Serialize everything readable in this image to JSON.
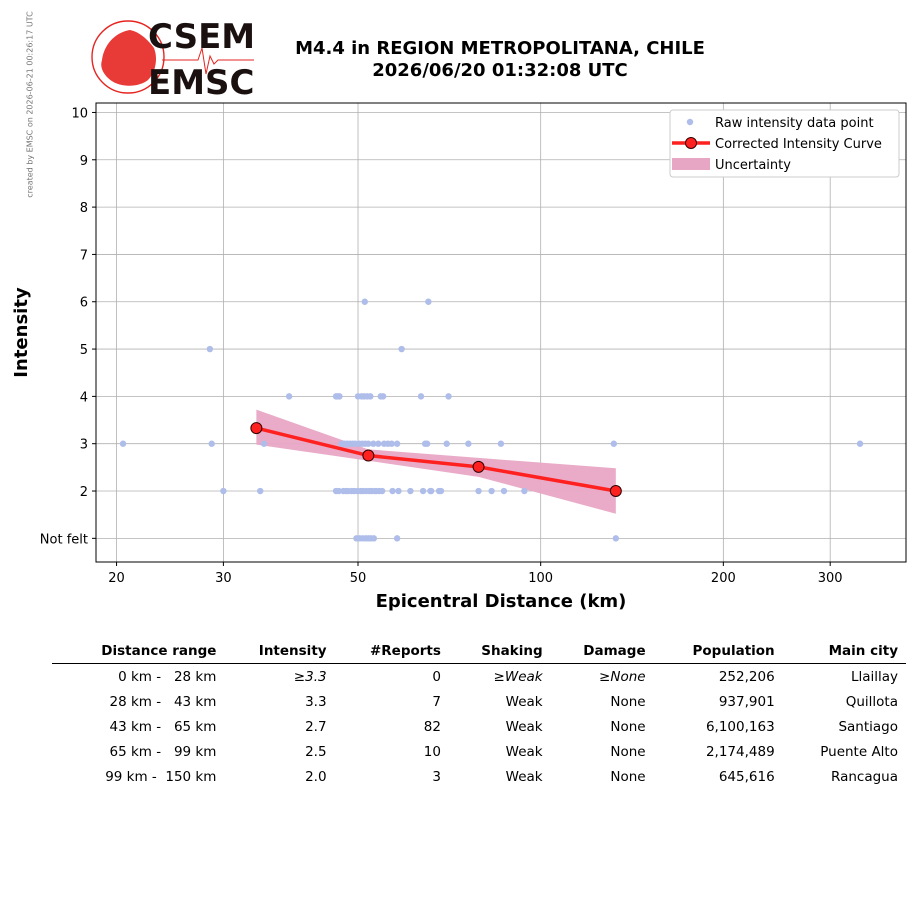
{
  "side_credit": "created by EMSC on 2026-06-21 00:26:17 UTC",
  "logo": {
    "top": "CSEM",
    "bottom": "EMSC",
    "color": "#e52521"
  },
  "header": {
    "title_line1": "M4.4 in REGION METROPOLITANA, CHILE",
    "title_line2": "2026/06/20 01:32:08 UTC"
  },
  "chart_data": {
    "type": "scatter",
    "xlabel": "Epicentral Distance (km)",
    "ylabel": "Intensity",
    "x_scale": "log",
    "xlim": [
      18.5,
      400
    ],
    "ylim": [
      0.5,
      10.2
    ],
    "x_ticks": [
      20,
      30,
      50,
      100,
      200,
      300
    ],
    "y_ticks": [
      1,
      2,
      3,
      4,
      5,
      6,
      7,
      8,
      9,
      10
    ],
    "y_tick_labels": [
      "Not felt",
      "2",
      "3",
      "4",
      "5",
      "6",
      "7",
      "8",
      "9",
      "10"
    ],
    "grid": true,
    "legend": {
      "placement": "top-right",
      "entries": [
        "Raw intensity data point",
        "Corrected Intensity Curve",
        "Uncertainty"
      ]
    },
    "colors": {
      "raw": "#aebde9",
      "curve": "#ff2020",
      "uncertainty": "#e8a6c5"
    },
    "raw_points": [
      [
        20.5,
        3
      ],
      [
        28.5,
        5
      ],
      [
        28.7,
        3
      ],
      [
        30,
        2
      ],
      [
        34.5,
        2
      ],
      [
        35,
        3
      ],
      [
        38.5,
        4
      ],
      [
        46,
        4
      ],
      [
        46.3,
        4
      ],
      [
        46.6,
        4
      ],
      [
        46,
        2
      ],
      [
        46.5,
        2
      ],
      [
        47,
        3
      ],
      [
        47.3,
        2
      ],
      [
        47.5,
        3
      ],
      [
        47.8,
        2
      ],
      [
        48,
        3
      ],
      [
        48.2,
        2
      ],
      [
        48.5,
        3
      ],
      [
        48.8,
        2
      ],
      [
        49,
        3
      ],
      [
        49.3,
        2
      ],
      [
        49.5,
        3
      ],
      [
        49.7,
        1
      ],
      [
        49.9,
        2
      ],
      [
        50,
        4
      ],
      [
        50.2,
        3
      ],
      [
        50.3,
        1
      ],
      [
        50.5,
        2
      ],
      [
        50.7,
        4
      ],
      [
        50.8,
        3
      ],
      [
        50.9,
        1
      ],
      [
        51,
        2
      ],
      [
        51.2,
        4
      ],
      [
        51.3,
        6
      ],
      [
        51.4,
        3
      ],
      [
        51.5,
        1
      ],
      [
        51.6,
        2
      ],
      [
        51.8,
        4
      ],
      [
        52,
        3
      ],
      [
        52,
        1
      ],
      [
        52.2,
        2
      ],
      [
        52.4,
        4
      ],
      [
        52.5,
        1
      ],
      [
        52.7,
        2
      ],
      [
        53,
        3
      ],
      [
        53.1,
        1
      ],
      [
        53.3,
        2
      ],
      [
        53.6,
        2
      ],
      [
        54,
        3
      ],
      [
        54.2,
        2
      ],
      [
        54.5,
        4
      ],
      [
        54.8,
        2
      ],
      [
        55,
        4
      ],
      [
        55.2,
        3
      ],
      [
        56,
        3
      ],
      [
        56.8,
        3
      ],
      [
        57,
        2
      ],
      [
        58,
        3
      ],
      [
        58,
        1
      ],
      [
        58.3,
        2
      ],
      [
        59,
        5
      ],
      [
        61,
        2
      ],
      [
        63.5,
        4
      ],
      [
        64,
        2
      ],
      [
        64.5,
        3
      ],
      [
        65,
        3
      ],
      [
        65.3,
        6
      ],
      [
        65.8,
        2
      ],
      [
        66,
        2
      ],
      [
        68,
        2
      ],
      [
        68.5,
        2
      ],
      [
        70,
        3
      ],
      [
        70.5,
        4
      ],
      [
        76,
        3
      ],
      [
        79,
        2
      ],
      [
        83,
        2
      ],
      [
        86,
        3
      ],
      [
        87,
        2
      ],
      [
        94,
        2
      ],
      [
        132,
        3
      ],
      [
        133,
        1
      ],
      [
        133,
        2
      ],
      [
        134,
        2
      ],
      [
        336,
        3
      ]
    ],
    "curve": {
      "x": [
        34,
        52,
        79,
        133
      ],
      "y": [
        3.33,
        2.75,
        2.51,
        2.0
      ]
    },
    "uncertainty": {
      "x": [
        34,
        52,
        79,
        133
      ],
      "upper": [
        3.72,
        2.88,
        2.7,
        2.48
      ],
      "lower": [
        2.98,
        2.64,
        2.3,
        1.52
      ]
    }
  },
  "table": {
    "headers": [
      "Distance range",
      "Intensity",
      "#Reports",
      "Shaking",
      "Damage",
      "Population",
      "Main city"
    ],
    "rows": [
      [
        "0 km -   28 km",
        "≥3.3",
        "0",
        "≥Weak",
        "≥None",
        "252,206",
        "Llaillay"
      ],
      [
        "28 km -   43 km",
        "3.3",
        "7",
        "Weak",
        "None",
        "937,901",
        "Quillota"
      ],
      [
        "43 km -   65 km",
        "2.7",
        "82",
        "Weak",
        "None",
        "6,100,163",
        "Santiago"
      ],
      [
        "65 km -   99 km",
        "2.5",
        "10",
        "Weak",
        "None",
        "2,174,489",
        "Puente Alto"
      ],
      [
        "99 km -  150 km",
        "2.0",
        "3",
        "Weak",
        "None",
        "645,616",
        "Rancagua"
      ]
    ],
    "italic_row": 0
  }
}
